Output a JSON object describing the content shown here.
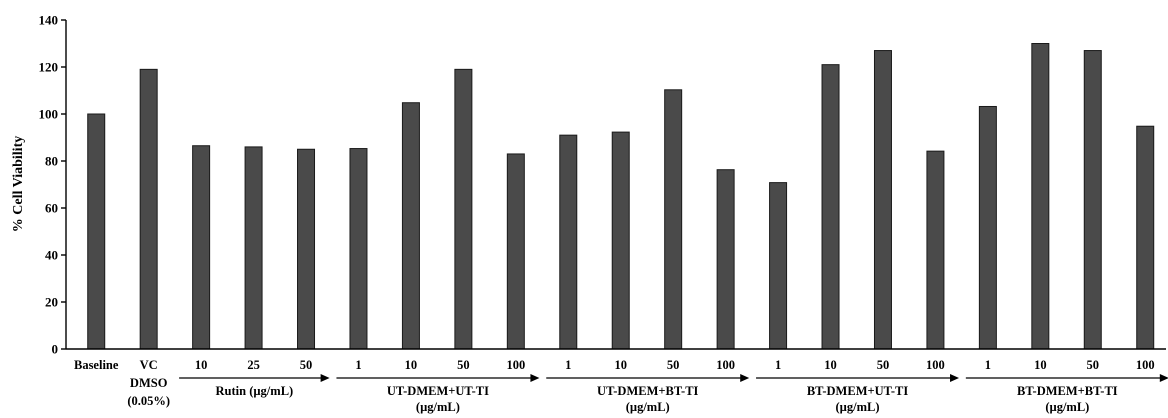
{
  "chart_data": {
    "type": "bar",
    "ylabel": "% Cell Viability",
    "xlabel": "",
    "ylim": [
      0,
      140
    ],
    "yticks": [
      "0",
      "20",
      "40",
      "60",
      "80",
      "100",
      "120",
      "140"
    ],
    "grid": false,
    "bar_color": "#4a4a4a",
    "categories": [
      [
        "Baseline"
      ],
      [
        "VC",
        "DMSO",
        "(0.05%)"
      ],
      [
        "10"
      ],
      [
        "25"
      ],
      [
        "50"
      ],
      [
        "1"
      ],
      [
        "10"
      ],
      [
        "50"
      ],
      [
        "100"
      ],
      [
        "1"
      ],
      [
        "10"
      ],
      [
        "50"
      ],
      [
        "100"
      ],
      [
        "1"
      ],
      [
        "10"
      ],
      [
        "50"
      ],
      [
        "100"
      ],
      [
        "1"
      ],
      [
        "10"
      ],
      [
        "50"
      ],
      [
        "100"
      ]
    ],
    "values": [
      100,
      119,
      86.5,
      86,
      85,
      85.3,
      104.8,
      119,
      83,
      91,
      92.3,
      110.3,
      76.3,
      70.8,
      121,
      127,
      84.2,
      103.2,
      130,
      127,
      94.8
    ],
    "groups": [
      {
        "label": [
          "Rutin (µg/mL)"
        ],
        "start": 2,
        "end": 4
      },
      {
        "label": [
          "UT-DMEM+UT-TI",
          "(µg/mL)"
        ],
        "start": 5,
        "end": 8
      },
      {
        "label": [
          "UT-DMEM+BT-TI",
          "(µg/mL)"
        ],
        "start": 9,
        "end": 12
      },
      {
        "label": [
          "BT-DMEM+UT-TI",
          "(µg/mL)"
        ],
        "start": 13,
        "end": 16
      },
      {
        "label": [
          "BT-DMEM+BT-TI",
          "(µg/mL)"
        ],
        "start": 17,
        "end": 20
      }
    ]
  }
}
